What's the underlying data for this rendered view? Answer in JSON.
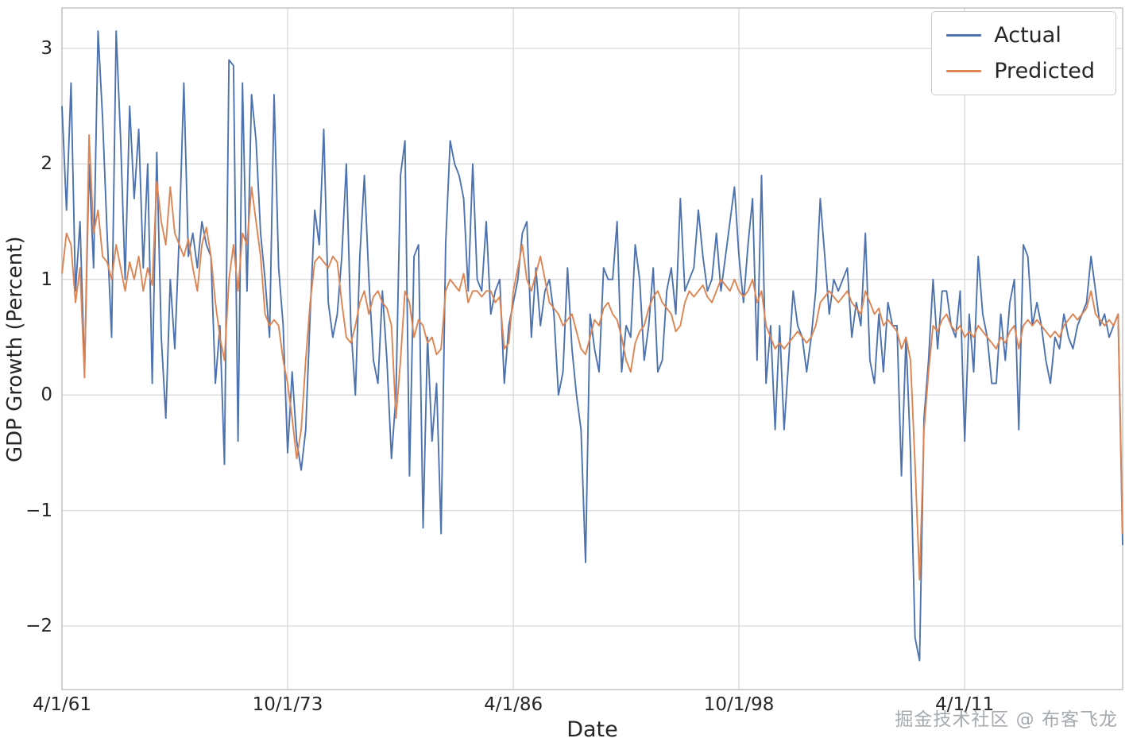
{
  "watermark": "掘金技术社区 @ 布客飞龙",
  "chart_data": {
    "type": "line",
    "title": "",
    "xlabel": "Date",
    "ylabel": "GDP Growth (Percent)",
    "ylim": [
      -2.55,
      3.35
    ],
    "grid": true,
    "legend_position": "upper right",
    "x_unit": "quarterly dates from 4/1/61 to ~2020",
    "x_ticks": [
      {
        "i": 0,
        "label": "4/1/61"
      },
      {
        "i": 50,
        "label": "10/1/73"
      },
      {
        "i": 100,
        "label": "4/1/86"
      },
      {
        "i": 150,
        "label": "10/1/98"
      },
      {
        "i": 200,
        "label": "4/1/11"
      }
    ],
    "y_ticks": [
      3,
      2,
      1,
      0,
      -1,
      -2
    ],
    "series": [
      {
        "name": "Actual",
        "color": "#4c72b0",
        "values": [
          2.5,
          1.6,
          2.7,
          0.9,
          1.5,
          0.2,
          2.0,
          1.1,
          3.15,
          2.4,
          1.4,
          0.5,
          3.15,
          2.2,
          1.0,
          2.5,
          1.7,
          2.3,
          1.1,
          2.0,
          0.1,
          2.1,
          0.5,
          -0.2,
          1.0,
          0.4,
          1.4,
          2.7,
          1.2,
          1.4,
          1.1,
          1.5,
          1.3,
          1.2,
          0.1,
          0.6,
          -0.6,
          2.9,
          2.85,
          -0.4,
          2.7,
          0.9,
          2.6,
          2.2,
          1.4,
          1.0,
          0.5,
          2.6,
          1.1,
          0.6,
          -0.5,
          0.2,
          -0.4,
          -0.65,
          -0.3,
          0.7,
          1.6,
          1.3,
          2.3,
          0.8,
          0.5,
          0.7,
          1.2,
          2.0,
          0.6,
          0.0,
          1.2,
          1.9,
          1.0,
          0.3,
          0.1,
          0.9,
          0.3,
          -0.55,
          0.0,
          1.9,
          2.2,
          -0.7,
          1.2,
          1.3,
          -1.15,
          0.5,
          -0.4,
          0.1,
          -1.2,
          1.3,
          2.2,
          2.0,
          1.9,
          1.7,
          0.9,
          2.0,
          1.0,
          0.9,
          1.5,
          0.7,
          0.9,
          1.0,
          0.1,
          0.6,
          0.8,
          1.0,
          1.4,
          1.5,
          0.5,
          1.1,
          0.6,
          0.9,
          1.0,
          0.7,
          0.0,
          0.2,
          1.1,
          0.4,
          0.0,
          -0.3,
          -1.45,
          0.7,
          0.4,
          0.2,
          1.1,
          1.0,
          1.0,
          1.5,
          0.2,
          0.6,
          0.5,
          1.3,
          1.0,
          0.3,
          0.6,
          1.1,
          0.2,
          0.3,
          0.9,
          1.1,
          0.7,
          1.7,
          0.9,
          1.0,
          1.1,
          1.6,
          1.2,
          0.9,
          1.0,
          1.4,
          0.9,
          1.2,
          1.5,
          1.8,
          1.2,
          0.8,
          1.3,
          1.7,
          0.3,
          1.9,
          0.1,
          0.6,
          -0.3,
          0.6,
          -0.3,
          0.3,
          0.9,
          0.6,
          0.5,
          0.2,
          0.5,
          0.9,
          1.7,
          1.2,
          0.7,
          1.0,
          0.9,
          1.0,
          1.1,
          0.5,
          0.8,
          0.6,
          1.4,
          0.3,
          0.1,
          0.7,
          0.2,
          0.8,
          0.6,
          0.6,
          -0.7,
          0.5,
          -0.5,
          -2.1,
          -2.3,
          -0.2,
          0.3,
          1.0,
          0.4,
          0.9,
          0.9,
          0.6,
          0.5,
          0.9,
          -0.4,
          0.7,
          0.2,
          1.2,
          0.7,
          0.5,
          0.1,
          0.1,
          0.7,
          0.3,
          0.8,
          1.0,
          -0.3,
          1.3,
          1.2,
          0.6,
          0.8,
          0.6,
          0.3,
          0.1,
          0.5,
          0.4,
          0.7,
          0.5,
          0.4,
          0.6,
          0.7,
          0.8,
          1.2,
          0.9,
          0.6,
          0.7,
          0.5,
          0.6,
          0.7,
          -1.3
        ]
      },
      {
        "name": "Predicted",
        "color": "#dd8452",
        "values": [
          1.05,
          1.4,
          1.3,
          0.8,
          1.1,
          0.15,
          2.25,
          1.4,
          1.6,
          1.2,
          1.15,
          1.0,
          1.3,
          1.1,
          0.9,
          1.15,
          1.0,
          1.2,
          0.9,
          1.1,
          0.95,
          1.85,
          1.5,
          1.3,
          1.8,
          1.4,
          1.3,
          1.2,
          1.35,
          1.1,
          0.9,
          1.3,
          1.45,
          1.2,
          0.8,
          0.5,
          0.3,
          1.0,
          1.3,
          0.9,
          1.4,
          1.3,
          1.8,
          1.5,
          1.2,
          0.7,
          0.6,
          0.65,
          0.6,
          0.3,
          0.1,
          -0.2,
          -0.55,
          -0.3,
          0.3,
          0.8,
          1.15,
          1.2,
          1.15,
          1.1,
          1.2,
          1.15,
          0.8,
          0.5,
          0.45,
          0.6,
          0.8,
          0.9,
          0.7,
          0.85,
          0.9,
          0.8,
          0.75,
          0.6,
          -0.2,
          0.3,
          0.9,
          0.8,
          0.5,
          0.65,
          0.6,
          0.45,
          0.5,
          0.35,
          0.4,
          0.9,
          1.0,
          0.95,
          0.9,
          1.05,
          0.8,
          0.9,
          0.9,
          0.85,
          0.9,
          0.9,
          0.8,
          0.85,
          0.4,
          0.45,
          0.9,
          1.1,
          1.3,
          1.0,
          0.9,
          1.05,
          1.2,
          1.0,
          0.8,
          0.75,
          0.7,
          0.6,
          0.65,
          0.7,
          0.55,
          0.4,
          0.35,
          0.5,
          0.65,
          0.6,
          0.75,
          0.8,
          0.7,
          0.65,
          0.5,
          0.3,
          0.2,
          0.45,
          0.55,
          0.6,
          0.75,
          0.85,
          0.9,
          0.8,
          0.75,
          0.7,
          0.55,
          0.6,
          0.8,
          0.9,
          0.85,
          0.9,
          0.95,
          0.85,
          0.8,
          0.9,
          1.0,
          0.95,
          0.9,
          1.0,
          0.9,
          0.85,
          0.9,
          1.0,
          0.8,
          0.9,
          0.6,
          0.5,
          0.4,
          0.45,
          0.4,
          0.45,
          0.5,
          0.55,
          0.5,
          0.45,
          0.5,
          0.6,
          0.8,
          0.85,
          0.9,
          0.85,
          0.8,
          0.85,
          0.9,
          0.8,
          0.75,
          0.7,
          0.9,
          0.8,
          0.7,
          0.75,
          0.6,
          0.65,
          0.6,
          0.55,
          0.4,
          0.5,
          0.3,
          -0.6,
          -1.6,
          -0.3,
          0.2,
          0.6,
          0.55,
          0.65,
          0.7,
          0.6,
          0.55,
          0.6,
          0.5,
          0.55,
          0.5,
          0.6,
          0.55,
          0.5,
          0.45,
          0.4,
          0.5,
          0.45,
          0.55,
          0.6,
          0.4,
          0.6,
          0.65,
          0.6,
          0.65,
          0.6,
          0.55,
          0.5,
          0.55,
          0.5,
          0.6,
          0.65,
          0.7,
          0.65,
          0.7,
          0.75,
          0.9,
          0.7,
          0.65,
          0.6,
          0.65,
          0.6,
          0.7,
          -1.2
        ]
      }
    ]
  }
}
